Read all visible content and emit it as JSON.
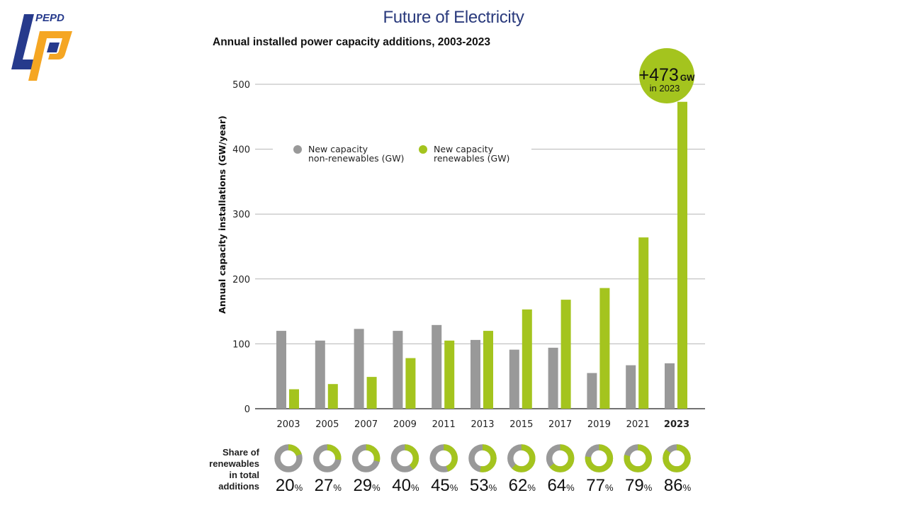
{
  "header": {
    "page_title": "Future of Electricity",
    "logo_text": "PEPD",
    "logo_icon": "pepd-logo-icon"
  },
  "colors": {
    "title": "#2a3a7c",
    "non_renewable": "#999999",
    "renewable": "#a4c41e",
    "gridline": "#b5b5b5",
    "baseline": "#444444",
    "logo_blue": "#263a8c",
    "logo_orange": "#f5a623"
  },
  "chart_data": {
    "type": "bar",
    "title": "Annual installed power capacity additions, 2003-2023",
    "xlabel": "",
    "ylabel": "Annual capacity installations (GW/year)",
    "ylim": [
      0,
      500
    ],
    "yticks": [
      0,
      100,
      200,
      300,
      400,
      500
    ],
    "grid": true,
    "legend_position": "top-left",
    "categories": [
      "2003",
      "2005",
      "2007",
      "2009",
      "2011",
      "2013",
      "2015",
      "2017",
      "2019",
      "2021",
      "2023"
    ],
    "highlight_category": "2023",
    "series": [
      {
        "name": "New capacity non-renewables (GW)",
        "legend_lines": [
          "New capacity",
          "non-renewables (GW)"
        ],
        "color": "#999999",
        "values": [
          120,
          105,
          123,
          120,
          129,
          106,
          91,
          94,
          55,
          67,
          70
        ]
      },
      {
        "name": "New capacity renewables (GW)",
        "legend_lines": [
          "New capacity",
          "renewables (GW)"
        ],
        "color": "#a4c41e",
        "values": [
          30,
          38,
          49,
          78,
          105,
          120,
          153,
          168,
          186,
          264,
          473
        ]
      }
    ],
    "annotation": {
      "value": "+473",
      "unit": "GW",
      "subtitle": "in 2023",
      "category": "2023"
    },
    "share": {
      "label_lines": [
        "Share of",
        "renewables",
        "in total",
        "additions"
      ],
      "values": [
        20,
        27,
        29,
        40,
        45,
        53,
        62,
        64,
        77,
        79,
        86
      ],
      "unit": "%"
    }
  }
}
